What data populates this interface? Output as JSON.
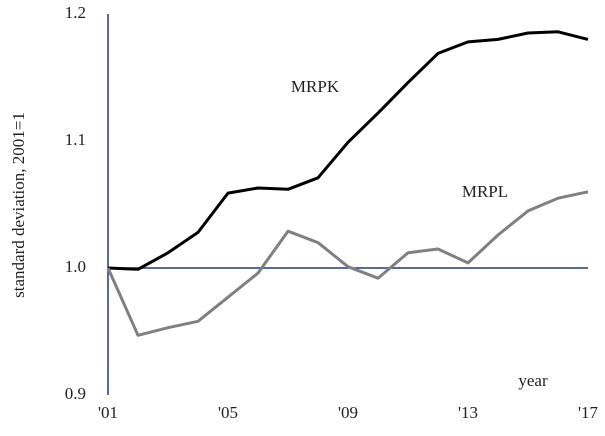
{
  "chart_data": {
    "type": "line",
    "y_label": "standard deviation, 2001=1",
    "x_label": "year",
    "categories": [
      "'01",
      null,
      null,
      null,
      "'05",
      null,
      null,
      null,
      "'09",
      null,
      null,
      null,
      "'13",
      null,
      null,
      null,
      "'17"
    ],
    "series": [
      {
        "name": "MRPK",
        "color": "#000000",
        "values": [
          1.0,
          0.999,
          1.012,
          1.028,
          1.059,
          1.063,
          1.062,
          1.071,
          1.099,
          1.122,
          1.146,
          1.169,
          1.178,
          1.18,
          1.185,
          1.186,
          1.18
        ]
      },
      {
        "name": "MRPL",
        "color": "#808080",
        "values": [
          1.0,
          0.947,
          0.953,
          0.958,
          0.977,
          0.996,
          1.029,
          1.02,
          1.001,
          0.992,
          1.012,
          1.015,
          1.004,
          1.026,
          1.045,
          1.055,
          1.06
        ]
      }
    ],
    "ylim": [
      0.9,
      1.2
    ],
    "yticks": [
      0.9,
      {
        "value": 1,
        "label": "1.0"
      },
      1.1,
      1.2
    ],
    "x_axis_at": 1,
    "axis_color": "#1f3a7a",
    "grid": false
  }
}
